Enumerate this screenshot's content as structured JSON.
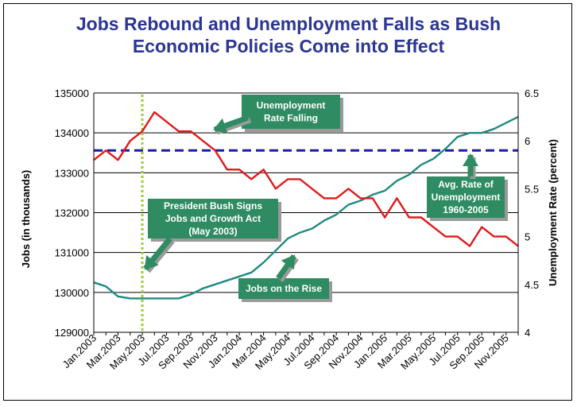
{
  "chart_data": {
    "type": "line",
    "title": [
      "Jobs Rebound and Unemployment Falls as Bush",
      "Economic Policies Come into Effect"
    ],
    "ylabel_left": "Jobs (in thousands)",
    "ylabel_right": "Unemployment Rate (percent)",
    "ylim_left": [
      129000,
      135000
    ],
    "ylim_right": [
      4,
      6.5
    ],
    "yticks_left": [
      "129000",
      "130000",
      "131000",
      "132000",
      "133000",
      "134000",
      "135000"
    ],
    "yticks_right": [
      "4",
      "4.5",
      "5",
      "5.5",
      "6",
      "6.5"
    ],
    "x": [
      "Jan.2003",
      "Feb.2003",
      "Mar.2003",
      "Apr.2003",
      "May.2003",
      "Jun.2003",
      "Jul.2003",
      "Aug.2003",
      "Sep.2003",
      "Oct.2003",
      "Nov.2003",
      "Dec.2003",
      "Jan.2004",
      "Feb.2004",
      "Mar.2004",
      "Apr.2004",
      "May.2004",
      "Jun.2004",
      "Jul.2004",
      "Aug.2004",
      "Sep.2004",
      "Oct.2004",
      "Nov.2004",
      "Dec.2004",
      "Jan.2005",
      "Feb.2005",
      "Mar.2005",
      "Apr.2005",
      "May.2005",
      "Jun.2005",
      "Jul.2005",
      "Aug.2005",
      "Sep.2005",
      "Oct.2005",
      "Nov.2005",
      "Dec.2005"
    ],
    "xticks": [
      "Jan.2003",
      "Mar.2003",
      "May.2003",
      "Jul.2003",
      "Sep.2003",
      "Nov.2003",
      "Jan.2004",
      "Mar.2004",
      "May.2004",
      "Jul.2004",
      "Sep.2004",
      "Nov.2004",
      "Jan.2005",
      "Mar.2005",
      "May.2005",
      "Jul.2005",
      "Sep.2005",
      "Nov.2005"
    ],
    "series": [
      {
        "axis": "left",
        "color": "#1f8a82",
        "values": [
          130250,
          130150,
          129900,
          129850,
          129850,
          129850,
          129850,
          129850,
          129950,
          130100,
          130200,
          130300,
          130400,
          130500,
          130750,
          131050,
          131350,
          131500,
          131600,
          131800,
          131950,
          132200,
          132300,
          132450,
          132550,
          132800,
          132950,
          133200,
          133350,
          133600,
          133900,
          134000,
          134000,
          134100,
          134250,
          134400
        ]
      },
      {
        "axis": "right",
        "color": "#e01a1a",
        "values": [
          5.8,
          5.9,
          5.8,
          6.0,
          6.1,
          6.3,
          6.2,
          6.1,
          6.1,
          6.0,
          5.9,
          5.7,
          5.7,
          5.6,
          5.7,
          5.5,
          5.6,
          5.6,
          5.5,
          5.4,
          5.4,
          5.5,
          5.4,
          5.4,
          5.2,
          5.4,
          5.2,
          5.2,
          5.1,
          5.0,
          5.0,
          4.9,
          5.1,
          5.0,
          5.0,
          4.9
        ]
      }
    ],
    "reference_lines": [
      {
        "axis": "right",
        "value": 5.9,
        "style": "dashed",
        "color": "#1a1aa8"
      }
    ],
    "vertical_marker": {
      "x": "May.2003",
      "style": "dotted",
      "color": "#9acd32"
    },
    "annotations": [
      {
        "lines": [
          "Unemployment",
          "Rate Falling"
        ]
      },
      {
        "lines": [
          "President Bush Signs",
          "Jobs and Growth Act",
          "(May 2003)"
        ]
      },
      {
        "lines": [
          "Jobs on the Rise"
        ]
      },
      {
        "lines": [
          "Avg. Rate of",
          "Unemployment",
          "1960-2005"
        ]
      }
    ],
    "grid": true,
    "callout_color": "#2e8b62"
  }
}
